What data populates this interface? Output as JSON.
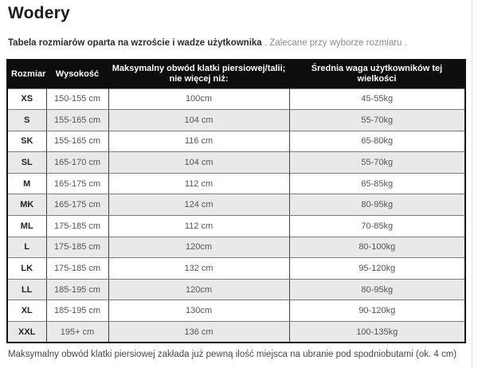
{
  "page": {
    "title": "Wodery",
    "intro_bold": "Tabela rozmiarów oparta na wzroście i wadze użytkownika",
    "intro_rest": " . Zalecane przy wyborze rozmiaru .",
    "footer_note": "Maksymalny obwód klatki piersiowej zakłada już pewną ilość miejsca na ubranie pod spodniobutami (ok. 4 cm)"
  },
  "table": {
    "headers": [
      "Rozmiar",
      "Wysokość",
      "Maksymalny obwód klatki piersiowej/talii;\nnie więcej niż:",
      "Średnia waga użytkowników tej wielkości"
    ],
    "column_keys": [
      "size",
      "height",
      "chest",
      "weight"
    ],
    "rows": [
      {
        "size": "XS",
        "height": "150-155 cm",
        "chest": "100cm",
        "weight": "45-55kg"
      },
      {
        "size": "S",
        "height": "155-165 cm",
        "chest": "104 cm",
        "weight": "55-70kg"
      },
      {
        "size": "SK",
        "height": "155-165 cm",
        "chest": "116 cm",
        "weight": "65-80kg"
      },
      {
        "size": "SL",
        "height": "165-170 cm",
        "chest": "104 cm",
        "weight": "55-70kg"
      },
      {
        "size": "M",
        "height": "165-175 cm",
        "chest": "112 cm",
        "weight": "65-85kg"
      },
      {
        "size": "MK",
        "height": "165-175 cm",
        "chest": "124 cm",
        "weight": "80-95kg"
      },
      {
        "size": "ML",
        "height": "175-185 cm",
        "chest": "112 cm",
        "weight": "70-85kg"
      },
      {
        "size": "L",
        "height": "175-185 cm",
        "chest": "120cm",
        "weight": "80-100kg"
      },
      {
        "size": "LK",
        "height": "175-185 cm",
        "chest": "132 cm",
        "weight": "95-120kg"
      },
      {
        "size": "LL",
        "height": "185-195 cm",
        "chest": "120cm",
        "weight": "80-95kg"
      },
      {
        "size": "XL",
        "height": "185-195 cm",
        "chest": "130cm",
        "weight": "90-120kg"
      },
      {
        "size": "XXL",
        "height": "195+ cm",
        "chest": "136 cm",
        "weight": "100-135kg"
      }
    ]
  },
  "colors": {
    "header_bg": "#0d0d0d",
    "header_text": "#ffffff",
    "row_stripe": "#e9e9e9",
    "border_outer": "#111111",
    "border_vertical": "#3d3d3d",
    "border_horizontal": "#7d7d7d",
    "text_primary": "#222222",
    "text_muted": "#555555",
    "intro_muted": "#8a8a8a",
    "page_edge": "#e3e3e3"
  }
}
